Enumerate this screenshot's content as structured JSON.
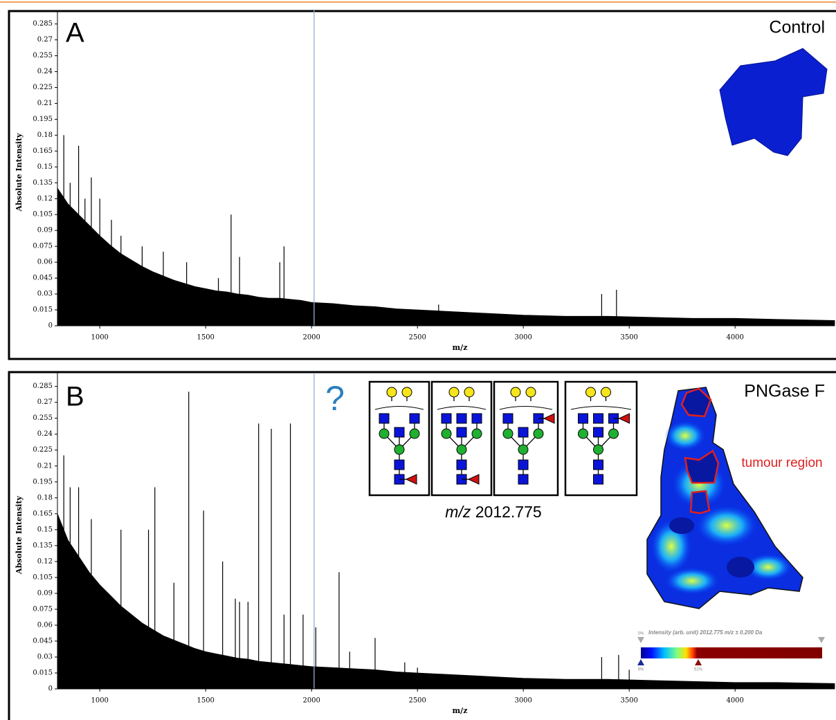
{
  "chart_data": [
    {
      "type": "spectrum",
      "panel_label": "A",
      "title": "Control",
      "xlabel": "m/z",
      "ylabel": "Absolute Intensity",
      "xlim": [
        800,
        4470
      ],
      "ylim": [
        0,
        0.29
      ],
      "xticks": [
        1000,
        1500,
        2000,
        2500,
        3000,
        3500,
        4000
      ],
      "yticks": [
        0,
        0.015,
        0.03,
        0.045,
        0.06,
        0.075,
        0.09,
        0.105,
        0.12,
        0.135,
        0.15,
        0.165,
        0.18,
        0.195,
        0.21,
        0.225,
        0.24,
        0.255,
        0.27,
        0.285
      ],
      "color": "#000000",
      "marker_x": 2012,
      "marker_color": "#8fb0cc",
      "envelope": {
        "x": [
          800,
          850,
          900,
          950,
          1000,
          1050,
          1100,
          1150,
          1200,
          1250,
          1300,
          1350,
          1400,
          1450,
          1500,
          1550,
          1600,
          1650,
          1700,
          1750,
          1800,
          1850,
          1900,
          1950,
          2000,
          2100,
          2200,
          2300,
          2400,
          2500,
          2600,
          2700,
          2800,
          2900,
          3000,
          3200,
          3400,
          3600,
          3800,
          4000,
          4200,
          4470
        ],
        "values": [
          0.13,
          0.115,
          0.105,
          0.095,
          0.085,
          0.076,
          0.068,
          0.062,
          0.056,
          0.051,
          0.047,
          0.043,
          0.04,
          0.037,
          0.035,
          0.033,
          0.032,
          0.03,
          0.029,
          0.027,
          0.026,
          0.026,
          0.025,
          0.024,
          0.022,
          0.021,
          0.019,
          0.018,
          0.016,
          0.015,
          0.014,
          0.013,
          0.012,
          0.011,
          0.01,
          0.009,
          0.009,
          0.008,
          0.007,
          0.007,
          0.006,
          0.005
        ]
      },
      "peaks": {
        "x": [
          830,
          860,
          900,
          930,
          960,
          1000,
          1055,
          1100,
          1200,
          1300,
          1410,
          1560,
          1620,
          1660,
          1850,
          1870,
          2600,
          3370,
          3440
        ],
        "values": [
          0.18,
          0.135,
          0.17,
          0.12,
          0.14,
          0.12,
          0.1,
          0.085,
          0.075,
          0.07,
          0.06,
          0.045,
          0.105,
          0.065,
          0.06,
          0.075,
          0.02,
          0.03,
          0.034
        ]
      }
    },
    {
      "type": "spectrum",
      "panel_label": "B",
      "title": "PNGase F",
      "xlabel": "m/z",
      "ylabel": "Absolute Intensity",
      "xlim": [
        800,
        4470
      ],
      "ylim": [
        0,
        0.29
      ],
      "xticks": [
        1000,
        1500,
        2000,
        2500,
        3000,
        3500,
        4000
      ],
      "yticks": [
        0,
        0.015,
        0.03,
        0.045,
        0.06,
        0.075,
        0.09,
        0.105,
        0.12,
        0.135,
        0.15,
        0.165,
        0.18,
        0.195,
        0.21,
        0.225,
        0.24,
        0.255,
        0.27,
        0.285
      ],
      "color": "#000000",
      "marker_x": 2012,
      "marker_color": "#8fb0cc",
      "envelope": {
        "x": [
          800,
          850,
          900,
          950,
          1000,
          1050,
          1100,
          1150,
          1200,
          1250,
          1300,
          1350,
          1400,
          1450,
          1500,
          1550,
          1600,
          1650,
          1700,
          1750,
          1800,
          1850,
          1900,
          1950,
          2000,
          2100,
          2200,
          2300,
          2400,
          2500,
          2600,
          2700,
          2800,
          2900,
          3000,
          3200,
          3400,
          3600,
          3800,
          4000,
          4200,
          4470
        ],
        "values": [
          0.165,
          0.14,
          0.125,
          0.11,
          0.098,
          0.088,
          0.078,
          0.07,
          0.062,
          0.056,
          0.05,
          0.046,
          0.042,
          0.038,
          0.035,
          0.033,
          0.031,
          0.029,
          0.028,
          0.026,
          0.025,
          0.024,
          0.023,
          0.022,
          0.021,
          0.02,
          0.019,
          0.018,
          0.016,
          0.015,
          0.014,
          0.013,
          0.012,
          0.011,
          0.01,
          0.009,
          0.009,
          0.008,
          0.007,
          0.006,
          0.006,
          0.005
        ]
      },
      "peaks": {
        "x": [
          830,
          860,
          900,
          960,
          1100,
          1230,
          1260,
          1350,
          1420,
          1490,
          1580,
          1640,
          1660,
          1700,
          1750,
          1810,
          1870,
          1900,
          1960,
          2020,
          2130,
          2180,
          2300,
          2440,
          2500,
          3370,
          3450,
          3500
        ],
        "values": [
          0.22,
          0.19,
          0.19,
          0.16,
          0.15,
          0.15,
          0.19,
          0.1,
          0.28,
          0.168,
          0.12,
          0.085,
          0.082,
          0.082,
          0.25,
          0.245,
          0.07,
          0.25,
          0.07,
          0.058,
          0.11,
          0.035,
          0.048,
          0.025,
          0.02,
          0.03,
          0.032,
          0.018
        ]
      },
      "question": "?",
      "glycan_label_unit": "m/z",
      "glycan_label_value": "2012.775",
      "region_label": "tumour region",
      "colorbar": {
        "title": "Intensity (arb. unit) 2012.775 m/z ± 0.200 Da",
        "labels": [
          "0%",
          "9%",
          "51%"
        ]
      }
    }
  ]
}
